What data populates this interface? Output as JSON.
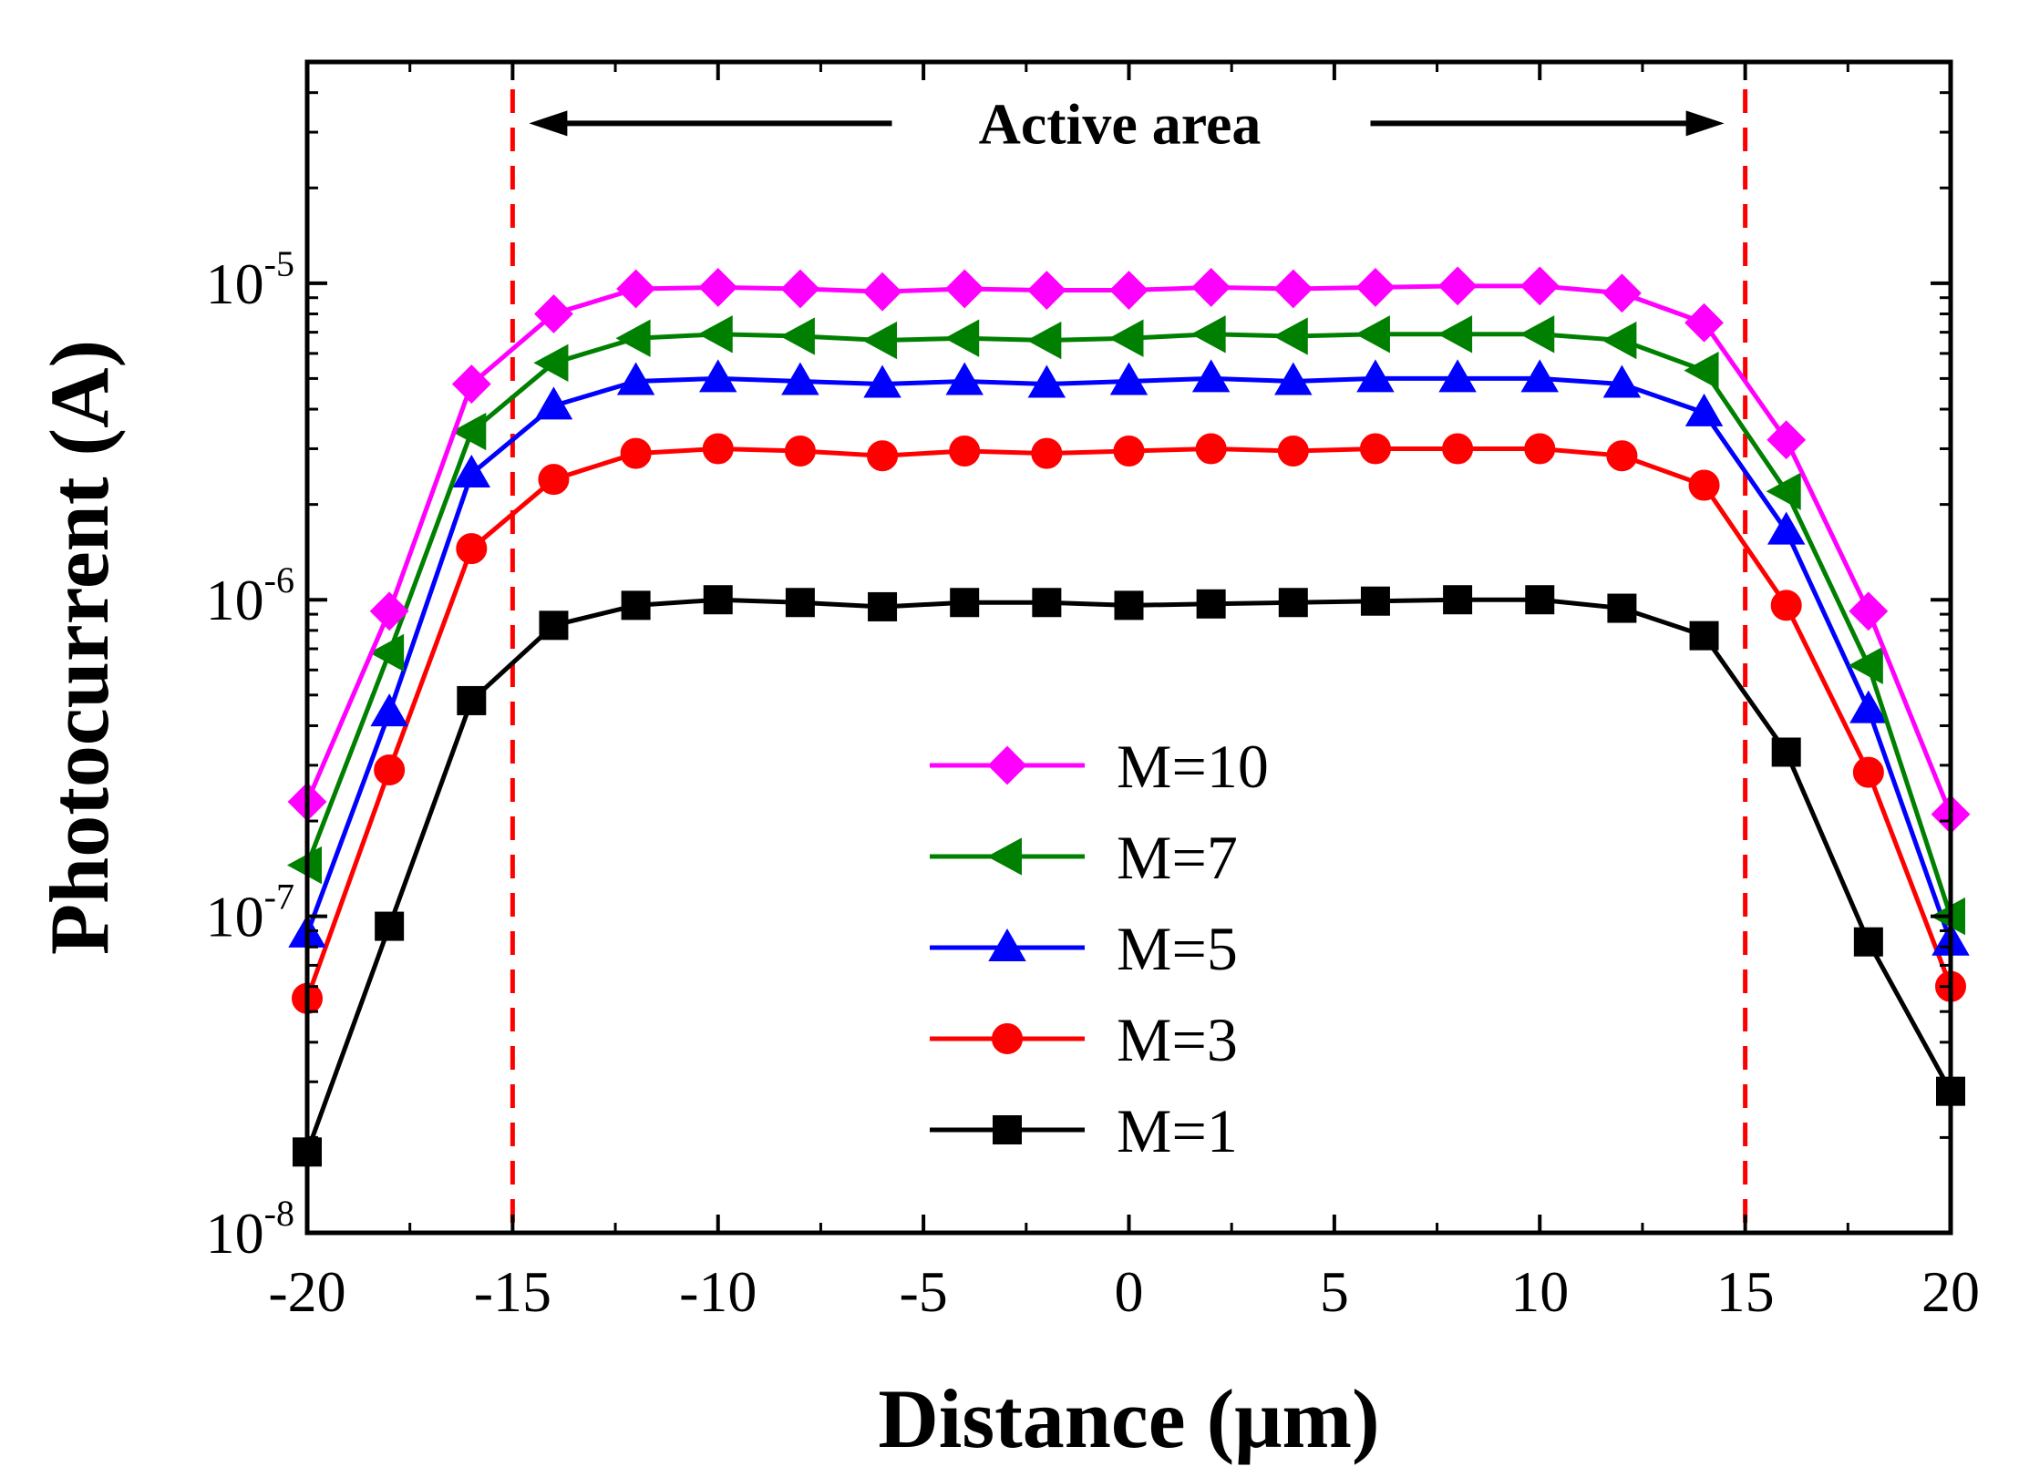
{
  "chart_data": {
    "type": "line",
    "yscale": "log",
    "title": "",
    "xlabel": "Distance (μm)",
    "ylabel": "Photocurrent (A)",
    "xlim": [
      -20,
      20
    ],
    "ylim": [
      1e-08,
      5e-05
    ],
    "grid": false,
    "legend_position": "center",
    "x_ticks": [
      -20,
      -15,
      -10,
      -5,
      0,
      5,
      10,
      15,
      20
    ],
    "x_tick_labels": [
      "-20",
      "-15",
      "-10",
      "-5",
      "0",
      "5",
      "10",
      "15",
      "20"
    ],
    "y_ticks": [
      {
        "value": 1e-08,
        "base": "10",
        "exp": "-8"
      },
      {
        "value": 1e-07,
        "base": "10",
        "exp": "-7"
      },
      {
        "value": 1e-06,
        "base": "10",
        "exp": "-6"
      },
      {
        "value": 1e-05,
        "base": "10",
        "exp": "-5"
      }
    ],
    "x": [
      -20,
      -18,
      -16,
      -14,
      -12,
      -10,
      -8,
      -6,
      -4,
      -2,
      0,
      2,
      4,
      6,
      8,
      10,
      12,
      14,
      16,
      18,
      20
    ],
    "series": [
      {
        "name": "M=10",
        "color": "#ff00ff",
        "marker": "diamond",
        "values": [
          2.3e-07,
          9.2e-07,
          4.8e-06,
          8e-06,
          9.6e-06,
          9.7e-06,
          9.6e-06,
          9.4e-06,
          9.6e-06,
          9.5e-06,
          9.5e-06,
          9.7e-06,
          9.6e-06,
          9.7e-06,
          9.8e-06,
          9.8e-06,
          9.3e-06,
          7.5e-06,
          3.2e-06,
          9.2e-07,
          2.1e-07
        ]
      },
      {
        "name": "M=7",
        "color": "#008000",
        "marker": "triangle-left",
        "values": [
          1.45e-07,
          6.8e-07,
          3.4e-06,
          5.6e-06,
          6.7e-06,
          6.9e-06,
          6.8e-06,
          6.6e-06,
          6.7e-06,
          6.6e-06,
          6.7e-06,
          6.9e-06,
          6.8e-06,
          6.9e-06,
          6.9e-06,
          6.9e-06,
          6.6e-06,
          5.3e-06,
          2.2e-06,
          6.2e-07,
          1e-07
        ]
      },
      {
        "name": "M=5",
        "color": "#0000ff",
        "marker": "triangle-up",
        "values": [
          8.8e-08,
          4.4e-07,
          2.5e-06,
          4.1e-06,
          4.9e-06,
          5e-06,
          4.9e-06,
          4.8e-06,
          4.9e-06,
          4.8e-06,
          4.9e-06,
          5e-06,
          4.9e-06,
          5e-06,
          5e-06,
          5e-06,
          4.8e-06,
          3.9e-06,
          1.65e-06,
          4.5e-07,
          8.3e-08
        ]
      },
      {
        "name": "M=3",
        "color": "#ff0000",
        "marker": "circle",
        "values": [
          5.5e-08,
          2.9e-07,
          1.45e-06,
          2.4e-06,
          2.9e-06,
          3e-06,
          2.95e-06,
          2.85e-06,
          2.95e-06,
          2.9e-06,
          2.95e-06,
          3e-06,
          2.95e-06,
          3e-06,
          3e-06,
          3e-06,
          2.85e-06,
          2.3e-06,
          9.6e-07,
          2.85e-07,
          6e-08
        ]
      },
      {
        "name": "M=1",
        "color": "#000000",
        "marker": "square",
        "values": [
          1.8e-08,
          9.3e-08,
          4.8e-07,
          8.3e-07,
          9.6e-07,
          1e-06,
          9.8e-07,
          9.5e-07,
          9.8e-07,
          9.8e-07,
          9.6e-07,
          9.7e-07,
          9.8e-07,
          9.9e-07,
          1e-06,
          1e-06,
          9.4e-07,
          7.7e-07,
          3.3e-07,
          8.3e-08,
          2.8e-08
        ]
      }
    ],
    "reference_lines": [
      {
        "x": -15,
        "style": "dashed",
        "color": "#ff0000"
      },
      {
        "x": 15,
        "style": "dashed",
        "color": "#ff0000"
      }
    ],
    "annotation": {
      "text": "Active area",
      "arrow_from": -15,
      "arrow_to": 15,
      "y": 3.2e-05
    }
  }
}
